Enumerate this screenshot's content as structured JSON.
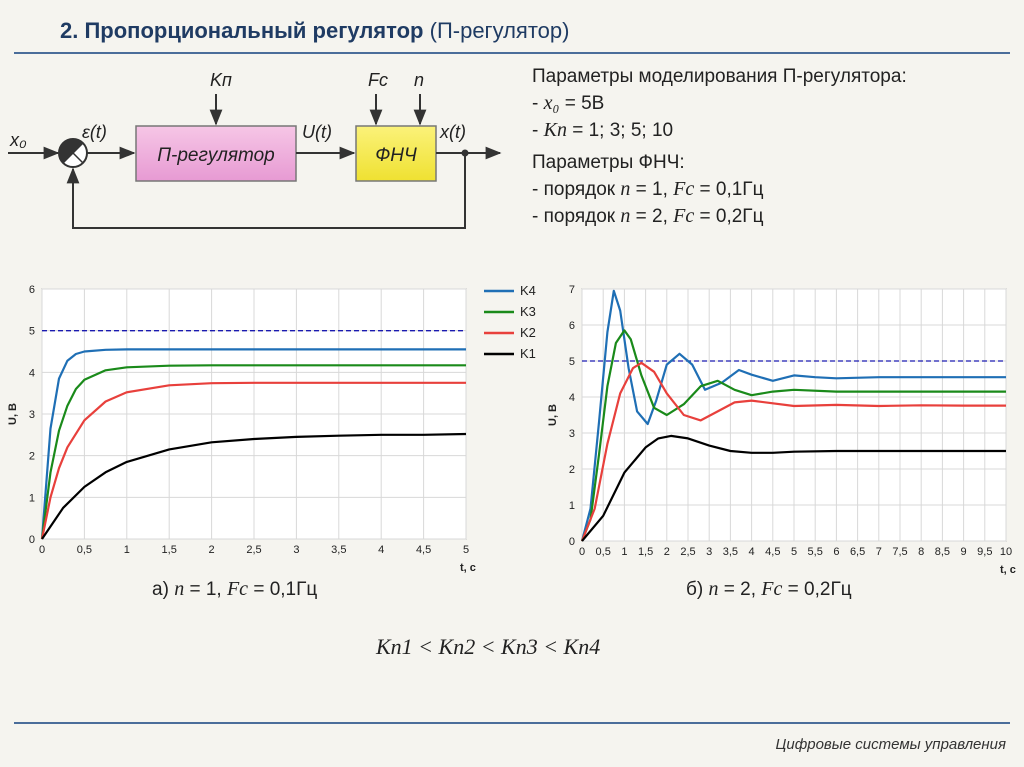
{
  "header": {
    "title_bold": "2. Пропорциональный регулятор",
    "title_rest": " (П-регулятор)"
  },
  "footer": {
    "text": "Цифровые системы управления"
  },
  "diagram": {
    "input": "x₀",
    "error": "ε(t)",
    "gain": "Kп",
    "controller": "П-регулятор",
    "control": "U(t)",
    "fc": "Fc",
    "n": "n",
    "filter": "ФНЧ",
    "output": "x(t)"
  },
  "params": {
    "heading1": "Параметры моделирования П-регулятора:",
    "line_x0_pre": "- ",
    "line_x0_sym": "x₀",
    "line_x0_val": " = 5В",
    "line_k_pre": "- ",
    "line_k_sym": "Kп",
    "line_k_val": " = 1; 3; 5; 10",
    "heading2": "Параметры ФНЧ:",
    "line_n1_pre": "- порядок ",
    "line_n1_n": "n",
    "line_n1_mid": " = 1, ",
    "line_n1_fc": "Fc",
    "line_n1_val": " = 0,1Гц",
    "line_n2_pre": "- порядок ",
    "line_n2_n": "n",
    "line_n2_mid": " = 2, ",
    "line_n2_fc": "Fc",
    "line_n2_val": " = 0,2Гц"
  },
  "captions": {
    "a_pre": "а) ",
    "a_n": "n",
    "a_mid": " = 1, ",
    "a_fc": "Fc",
    "a_val": " = 0,1Гц",
    "b_pre": "б) ",
    "b_n": "n",
    "b_mid": " = 2, ",
    "b_fc": "Fc",
    "b_val": " = 0,2Гц"
  },
  "inequality": "Kп1 < Kп2 < Kп3 < Kп4",
  "colors": {
    "K4": "#1f6fb5",
    "K3": "#1a8a1a",
    "K2": "#e8403c",
    "K1": "#000000",
    "ref": "#1a1ab0"
  },
  "chart_data": [
    {
      "type": "line",
      "xlabel": "t, c",
      "ylabel": "U, В",
      "xlim": [
        0,
        5
      ],
      "ylim": [
        0,
        6
      ],
      "xticks": [
        "0",
        "0,5",
        "1",
        "1,5",
        "2",
        "2,5",
        "3",
        "3,5",
        "4",
        "4,5",
        "5"
      ],
      "yticks": [
        "0",
        "1",
        "2",
        "3",
        "4",
        "5",
        "6"
      ],
      "reference_line": 5,
      "legend": [
        "K4",
        "K3",
        "K2",
        "K1"
      ],
      "series": [
        {
          "name": "K4",
          "x": [
            0,
            0.1,
            0.2,
            0.3,
            0.4,
            0.5,
            0.75,
            1,
            2,
            3,
            4,
            5
          ],
          "y": [
            0,
            2.65,
            3.85,
            4.28,
            4.44,
            4.5,
            4.54,
            4.55,
            4.55,
            4.55,
            4.55,
            4.55
          ]
        },
        {
          "name": "K3",
          "x": [
            0,
            0.1,
            0.2,
            0.3,
            0.4,
            0.5,
            0.75,
            1,
            1.5,
            2,
            3,
            4,
            5
          ],
          "y": [
            0,
            1.6,
            2.6,
            3.2,
            3.6,
            3.82,
            4.05,
            4.12,
            4.16,
            4.17,
            4.17,
            4.17,
            4.17
          ]
        },
        {
          "name": "K2",
          "x": [
            0,
            0.1,
            0.2,
            0.3,
            0.5,
            0.75,
            1,
            1.5,
            2,
            2.5,
            3,
            4,
            5
          ],
          "y": [
            0,
            1.0,
            1.7,
            2.2,
            2.85,
            3.3,
            3.52,
            3.69,
            3.74,
            3.75,
            3.75,
            3.75,
            3.75
          ]
        },
        {
          "name": "K1",
          "x": [
            0,
            0.25,
            0.5,
            0.75,
            1,
            1.5,
            2,
            2.5,
            3,
            3.5,
            4,
            4.5,
            5
          ],
          "y": [
            0,
            0.75,
            1.25,
            1.6,
            1.85,
            2.15,
            2.32,
            2.4,
            2.45,
            2.48,
            2.5,
            2.5,
            2.52
          ]
        }
      ]
    },
    {
      "type": "line",
      "xlabel": "t, c",
      "ylabel": "U, В",
      "xlim": [
        0,
        10
      ],
      "ylim": [
        0,
        7
      ],
      "xticks": [
        "0",
        "0,5",
        "1",
        "1,5",
        "2",
        "2,5",
        "3",
        "3,5",
        "4",
        "4,5",
        "5",
        "5,5",
        "6",
        "6,5",
        "7",
        "7,5",
        "8",
        "8,5",
        "9",
        "9,5",
        "10"
      ],
      "yticks": [
        "0",
        "1",
        "2",
        "3",
        "4",
        "5",
        "6",
        "7"
      ],
      "reference_line": 5,
      "series": [
        {
          "name": "K4",
          "x": [
            0,
            0.2,
            0.4,
            0.6,
            0.75,
            0.9,
            1.1,
            1.3,
            1.55,
            1.75,
            2,
            2.3,
            2.6,
            2.9,
            3.3,
            3.7,
            4,
            4.5,
            5,
            5.5,
            6,
            7,
            8,
            9,
            10
          ],
          "y": [
            0,
            0.9,
            3.3,
            5.8,
            6.95,
            6.4,
            4.8,
            3.6,
            3.25,
            3.9,
            4.9,
            5.2,
            4.9,
            4.2,
            4.4,
            4.75,
            4.62,
            4.45,
            4.6,
            4.55,
            4.52,
            4.55,
            4.55,
            4.55,
            4.55
          ]
        },
        {
          "name": "K3",
          "x": [
            0,
            0.2,
            0.4,
            0.6,
            0.8,
            1.0,
            1.15,
            1.4,
            1.7,
            2.0,
            2.4,
            2.8,
            3.2,
            3.6,
            4,
            4.5,
            5,
            6,
            7,
            8,
            9,
            10
          ],
          "y": [
            0,
            0.6,
            2.4,
            4.3,
            5.5,
            5.85,
            5.6,
            4.6,
            3.7,
            3.5,
            3.8,
            4.3,
            4.45,
            4.2,
            4.05,
            4.15,
            4.2,
            4.15,
            4.15,
            4.15,
            4.15,
            4.15
          ]
        },
        {
          "name": "K2",
          "x": [
            0,
            0.3,
            0.6,
            0.9,
            1.2,
            1.4,
            1.7,
            2.0,
            2.4,
            2.8,
            3.2,
            3.6,
            4,
            5,
            6,
            7,
            8,
            9,
            10
          ],
          "y": [
            0,
            0.9,
            2.7,
            4.1,
            4.8,
            4.95,
            4.7,
            4.1,
            3.5,
            3.35,
            3.6,
            3.85,
            3.9,
            3.75,
            3.78,
            3.75,
            3.77,
            3.76,
            3.76
          ]
        },
        {
          "name": "K1",
          "x": [
            0,
            0.5,
            1.0,
            1.5,
            1.8,
            2.1,
            2.5,
            3,
            3.5,
            4,
            4.5,
            5,
            6,
            7,
            8,
            9,
            10
          ],
          "y": [
            0,
            0.7,
            1.9,
            2.6,
            2.85,
            2.92,
            2.85,
            2.65,
            2.5,
            2.45,
            2.45,
            2.48,
            2.5,
            2.5,
            2.5,
            2.5,
            2.5
          ]
        }
      ]
    }
  ]
}
